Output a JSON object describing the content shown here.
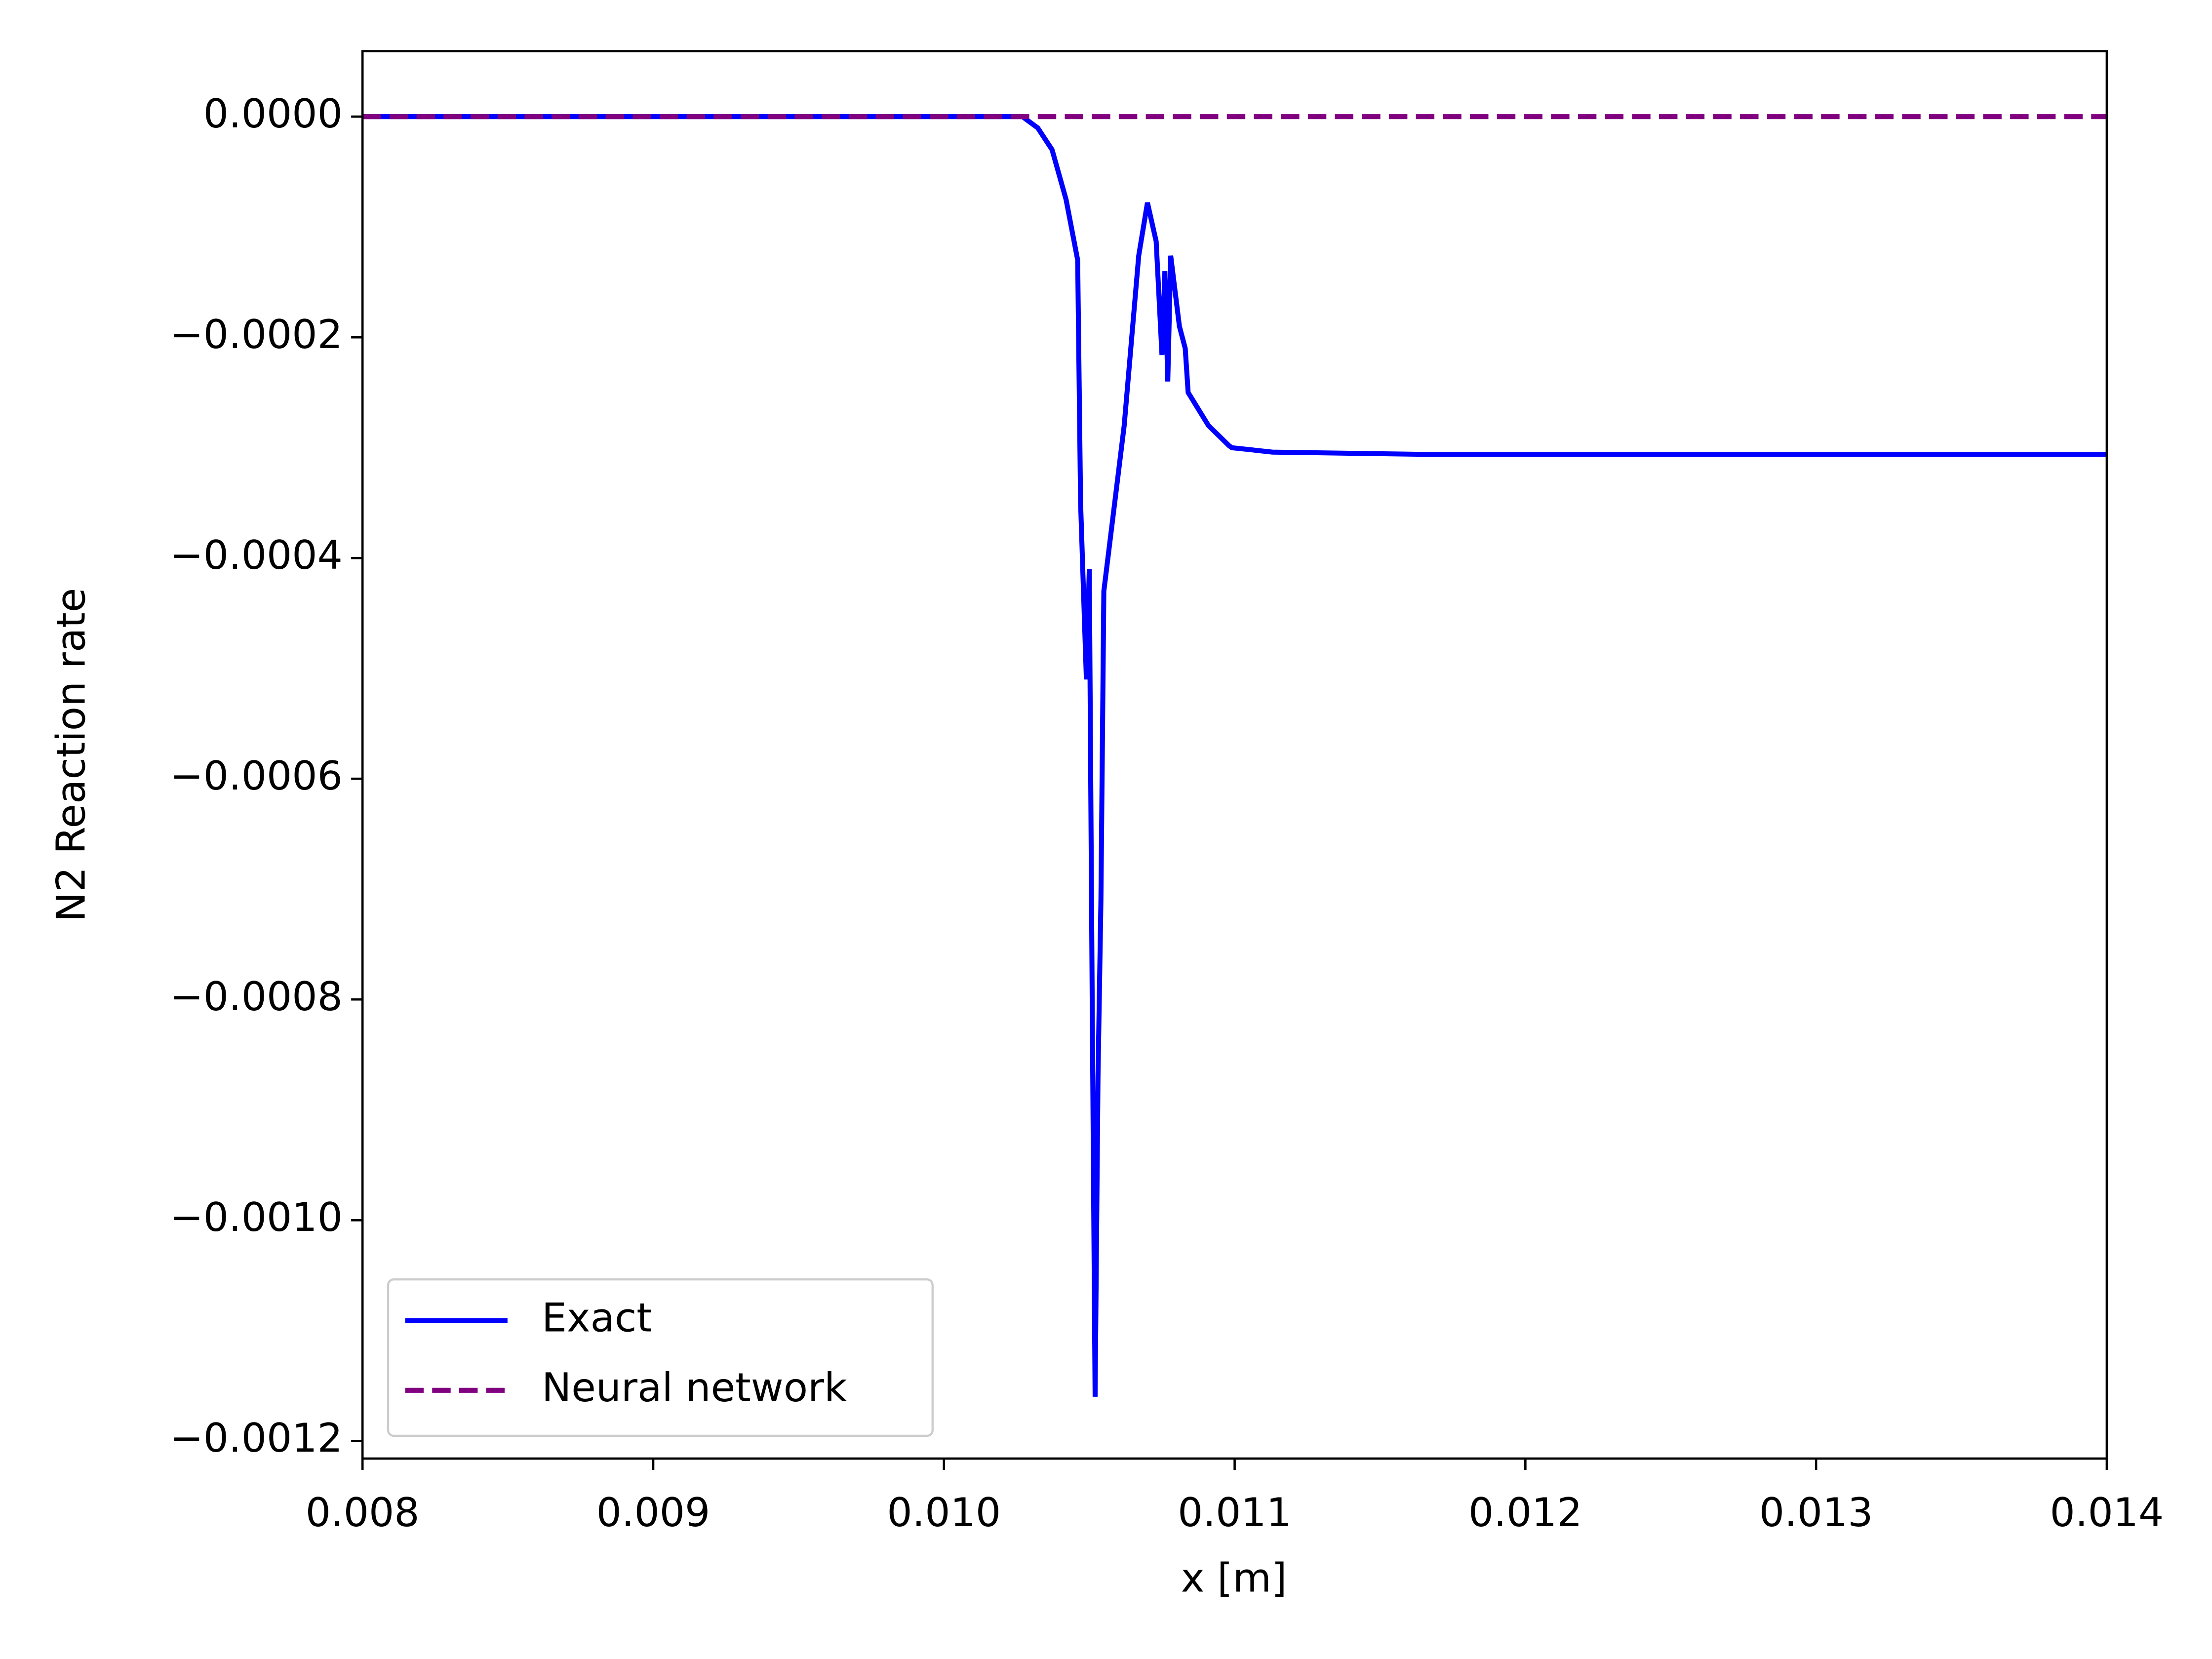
{
  "chart_data": {
    "type": "line",
    "xlabel": "x [m]",
    "ylabel": "N2 Reaction rate",
    "xlim": [
      0.008,
      0.014
    ],
    "xticks": [
      0.008,
      0.009,
      {
        "value": 0.01,
        "label": "0.010"
      },
      0.011,
      0.012,
      0.013,
      0.014
    ],
    "ylim": [
      -0.001216,
      5.93e-05
    ],
    "yticks": [
      {
        "value": 0,
        "label": "0.0000"
      },
      {
        "value": -0.0002,
        "label": "−0.0002"
      },
      {
        "value": -0.0004,
        "label": "−0.0004"
      },
      {
        "value": -0.0006,
        "label": "−0.0006"
      },
      {
        "value": -0.0008,
        "label": "−0.0008"
      },
      {
        "value": -0.001,
        "label": "−0.0010"
      },
      {
        "value": -0.0012,
        "label": "−0.0012"
      }
    ],
    "legend": "lower left",
    "series": [
      {
        "name": "Exact",
        "color": "#0000ff",
        "linestyle": "solid",
        "x": [
          0.008,
          0.01018,
          0.01027,
          0.010323,
          0.010372,
          0.01042,
          0.01046,
          0.01047,
          0.01049,
          0.0105,
          0.01051,
          0.01052,
          0.01053,
          0.01054,
          0.01055,
          0.01062,
          0.01067,
          0.0107,
          0.01073,
          0.01075,
          0.01076,
          0.01077,
          0.01078,
          0.01081,
          0.01083,
          0.01084,
          0.01091,
          0.01098,
          0.01099,
          0.01113,
          0.01164,
          0.014
        ],
        "values": [
          0,
          0,
          0,
          -1.03e-05,
          -3e-05,
          -7.5e-05,
          -0.00013,
          -0.00035,
          -0.00051,
          -0.00041,
          -0.0008,
          -0.00116,
          -0.00087,
          -0.00071,
          -0.00043,
          -0.00028,
          -0.000126,
          -7.8e-05,
          -0.000113,
          -0.000216,
          -0.00014,
          -0.00024,
          -0.000126,
          -0.00019,
          -0.00021,
          -0.00025,
          -0.00028,
          -0.000298,
          -0.0003,
          -0.000304,
          -0.000306,
          -0.000306
        ]
      },
      {
        "name": "Neural network",
        "color": "#800080",
        "linestyle": "dashed",
        "x": [
          0.008,
          0.014
        ],
        "values": [
          0,
          0
        ]
      }
    ]
  }
}
